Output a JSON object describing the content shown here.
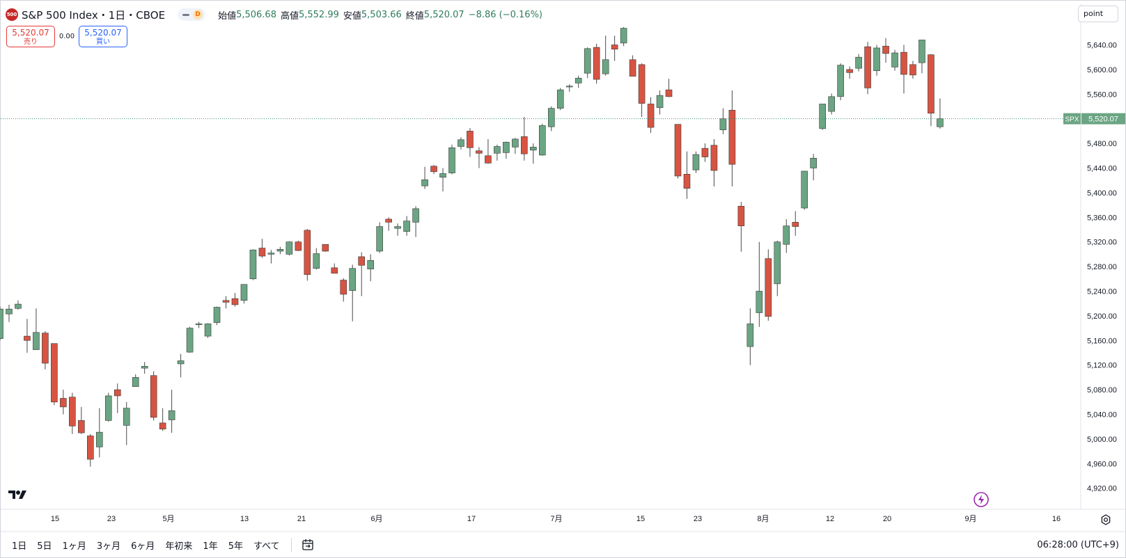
{
  "header": {
    "symbol_badge": "500",
    "title": "S&P 500 Index・1日・CBOE",
    "interval_badge": "D",
    "ohlc": [
      {
        "label": "始値",
        "value": "5,506.68"
      },
      {
        "label": "高値",
        "value": "5,552.99"
      },
      {
        "label": "安値",
        "value": "5,503.66"
      },
      {
        "label": "終値",
        "value": "5,520.07"
      }
    ],
    "change": "−8.86 (−0.16%)"
  },
  "trade": {
    "sell_price": "5,520.07",
    "sell_label": "売り",
    "spread": "0.00",
    "buy_price": "5,520.07",
    "buy_label": "買い"
  },
  "scale_mode": "point",
  "price_tag": {
    "symbol": "SPX",
    "value": "5,520.07"
  },
  "timeframes": [
    "1日",
    "5日",
    "1ヶ月",
    "3ヶ月",
    "6ヶ月",
    "年初来",
    "1年",
    "5年",
    "すべて"
  ],
  "clock": "06:28:00 (UTC+9)",
  "colors": {
    "up": "#6ba583",
    "down": "#d75442",
    "wick": "#4a4a4a",
    "accent": "#2e7d5b",
    "last_line": "#3d8f78"
  },
  "chart_data": {
    "type": "candlestick",
    "y_axis": {
      "labels": [
        "5,640.00",
        "5,600.00",
        "5,560.00",
        "5,520.00",
        "5,480.00",
        "5,440.00",
        "5,400.00",
        "5,360.00",
        "5,320.00",
        "5,280.00",
        "5,240.00",
        "5,200.00",
        "5,160.00",
        "5,120.00",
        "5,080.00",
        "5,040.00",
        "5,000.00",
        "4,960.00",
        "4,920.00"
      ],
      "min": 4910,
      "max": 5690
    },
    "x_axis": {
      "labels": [
        "15",
        "23",
        "5月",
        "13",
        "21",
        "6月",
        "17",
        "7月",
        "15",
        "23",
        "8月",
        "12",
        "20",
        "9月",
        "16"
      ]
    },
    "last_price": 5520.07,
    "candles": [
      {
        "o": 5163,
        "h": 5215,
        "l": 5160,
        "c": 5211
      },
      {
        "o": 5203,
        "h": 5218,
        "l": 5190,
        "c": 5211
      },
      {
        "o": 5212,
        "h": 5225,
        "l": 5210,
        "c": 5219
      },
      {
        "o": 5167,
        "h": 5195,
        "l": 5140,
        "c": 5160
      },
      {
        "o": 5145,
        "h": 5212,
        "l": 5145,
        "c": 5173
      },
      {
        "o": 5172,
        "h": 5175,
        "l": 5113,
        "c": 5123
      },
      {
        "o": 5155,
        "h": 5155,
        "l": 5055,
        "c": 5060
      },
      {
        "o": 5066,
        "h": 5080,
        "l": 5040,
        "c": 5052
      },
      {
        "o": 5068,
        "h": 5075,
        "l": 5008,
        "c": 5021
      },
      {
        "o": 5030,
        "h": 5052,
        "l": 5008,
        "c": 5010
      },
      {
        "o": 5005,
        "h": 5008,
        "l": 4955,
        "c": 4967
      },
      {
        "o": 4987,
        "h": 5050,
        "l": 4970,
        "c": 5011
      },
      {
        "o": 5030,
        "h": 5075,
        "l": 5028,
        "c": 5070
      },
      {
        "o": 5080,
        "h": 5090,
        "l": 5042,
        "c": 5070
      },
      {
        "o": 5022,
        "h": 5060,
        "l": 4990,
        "c": 5050
      },
      {
        "o": 5085,
        "h": 5105,
        "l": 5085,
        "c": 5100
      },
      {
        "o": 5115,
        "h": 5125,
        "l": 5106,
        "c": 5118
      },
      {
        "o": 5103,
        "h": 5110,
        "l": 5030,
        "c": 5035
      },
      {
        "o": 5026,
        "h": 5050,
        "l": 5013,
        "c": 5016
      },
      {
        "o": 5031,
        "h": 5080,
        "l": 5010,
        "c": 5046
      },
      {
        "o": 5122,
        "h": 5138,
        "l": 5100,
        "c": 5127
      },
      {
        "o": 5141,
        "h": 5182,
        "l": 5140,
        "c": 5180
      },
      {
        "o": 5187,
        "h": 5190,
        "l": 5180,
        "c": 5187
      },
      {
        "o": 5167,
        "h": 5188,
        "l": 5164,
        "c": 5187
      },
      {
        "o": 5189,
        "h": 5215,
        "l": 5185,
        "c": 5214
      },
      {
        "o": 5225,
        "h": 5232,
        "l": 5212,
        "c": 5222
      },
      {
        "o": 5228,
        "h": 5237,
        "l": 5215,
        "c": 5218
      },
      {
        "o": 5225,
        "h": 5250,
        "l": 5220,
        "c": 5251
      },
      {
        "o": 5260,
        "h": 5308,
        "l": 5258,
        "c": 5307
      },
      {
        "o": 5310,
        "h": 5325,
        "l": 5294,
        "c": 5297
      },
      {
        "o": 5300,
        "h": 5307,
        "l": 5285,
        "c": 5302
      },
      {
        "o": 5305,
        "h": 5312,
        "l": 5300,
        "c": 5308
      },
      {
        "o": 5300,
        "h": 5321,
        "l": 5298,
        "c": 5320
      },
      {
        "o": 5320,
        "h": 5322,
        "l": 5305,
        "c": 5306
      },
      {
        "o": 5339,
        "h": 5341,
        "l": 5257,
        "c": 5267
      },
      {
        "o": 5277,
        "h": 5310,
        "l": 5275,
        "c": 5301
      },
      {
        "o": 5316,
        "h": 5316,
        "l": 5304,
        "c": 5305
      },
      {
        "o": 5278,
        "h": 5285,
        "l": 5270,
        "c": 5269
      },
      {
        "o": 5258,
        "h": 5261,
        "l": 5223,
        "c": 5235
      },
      {
        "o": 5241,
        "h": 5283,
        "l": 5191,
        "c": 5277
      },
      {
        "o": 5296,
        "h": 5303,
        "l": 5232,
        "c": 5282
      },
      {
        "o": 5276,
        "h": 5300,
        "l": 5256,
        "c": 5290
      },
      {
        "o": 5305,
        "h": 5352,
        "l": 5302,
        "c": 5345
      },
      {
        "o": 5357,
        "h": 5360,
        "l": 5338,
        "c": 5352
      },
      {
        "o": 5342,
        "h": 5350,
        "l": 5330,
        "c": 5345
      },
      {
        "o": 5337,
        "h": 5362,
        "l": 5330,
        "c": 5354
      },
      {
        "o": 5352,
        "h": 5378,
        "l": 5328,
        "c": 5374
      },
      {
        "o": 5411,
        "h": 5442,
        "l": 5406,
        "c": 5421
      },
      {
        "o": 5443,
        "h": 5445,
        "l": 5430,
        "c": 5434
      },
      {
        "o": 5425,
        "h": 5440,
        "l": 5402,
        "c": 5431
      },
      {
        "o": 5432,
        "h": 5478,
        "l": 5430,
        "c": 5473
      },
      {
        "o": 5475,
        "h": 5490,
        "l": 5470,
        "c": 5486
      },
      {
        "o": 5500,
        "h": 5505,
        "l": 5458,
        "c": 5473
      },
      {
        "o": 5468,
        "h": 5474,
        "l": 5440,
        "c": 5464
      },
      {
        "o": 5460,
        "h": 5487,
        "l": 5447,
        "c": 5448
      },
      {
        "o": 5464,
        "h": 5478,
        "l": 5452,
        "c": 5475
      },
      {
        "o": 5465,
        "h": 5483,
        "l": 5455,
        "c": 5482
      },
      {
        "o": 5474,
        "h": 5489,
        "l": 5463,
        "c": 5487
      },
      {
        "o": 5491,
        "h": 5523,
        "l": 5452,
        "c": 5463
      },
      {
        "o": 5469,
        "h": 5480,
        "l": 5447,
        "c": 5474
      },
      {
        "o": 5461,
        "h": 5512,
        "l": 5460,
        "c": 5509
      },
      {
        "o": 5507,
        "h": 5540,
        "l": 5500,
        "c": 5537
      },
      {
        "o": 5537,
        "h": 5570,
        "l": 5534,
        "c": 5567
      },
      {
        "o": 5572,
        "h": 5576,
        "l": 5564,
        "c": 5573
      },
      {
        "o": 5578,
        "h": 5590,
        "l": 5570,
        "c": 5586
      },
      {
        "o": 5594,
        "h": 5636,
        "l": 5586,
        "c": 5634
      },
      {
        "o": 5636,
        "h": 5642,
        "l": 5577,
        "c": 5584
      },
      {
        "o": 5593,
        "h": 5655,
        "l": 5590,
        "c": 5616
      },
      {
        "o": 5640,
        "h": 5655,
        "l": 5614,
        "c": 5633
      },
      {
        "o": 5643,
        "h": 5669,
        "l": 5638,
        "c": 5667
      },
      {
        "o": 5616,
        "h": 5623,
        "l": 5590,
        "c": 5589
      },
      {
        "o": 5608,
        "h": 5610,
        "l": 5523,
        "c": 5545
      },
      {
        "o": 5544,
        "h": 5555,
        "l": 5497,
        "c": 5506
      },
      {
        "o": 5538,
        "h": 5566,
        "l": 5527,
        "c": 5558
      },
      {
        "o": 5567,
        "h": 5585,
        "l": 5555,
        "c": 5556
      },
      {
        "o": 5511,
        "h": 5511,
        "l": 5423,
        "c": 5427
      },
      {
        "o": 5430,
        "h": 5467,
        "l": 5390,
        "c": 5407
      },
      {
        "o": 5437,
        "h": 5467,
        "l": 5432,
        "c": 5462
      },
      {
        "o": 5472,
        "h": 5480,
        "l": 5450,
        "c": 5458
      },
      {
        "o": 5477,
        "h": 5487,
        "l": 5410,
        "c": 5436
      },
      {
        "o": 5502,
        "h": 5537,
        "l": 5495,
        "c": 5520
      },
      {
        "o": 5534,
        "h": 5566,
        "l": 5410,
        "c": 5446
      },
      {
        "o": 5378,
        "h": 5385,
        "l": 5304,
        "c": 5346
      },
      {
        "o": 5150,
        "h": 5212,
        "l": 5120,
        "c": 5187
      },
      {
        "o": 5205,
        "h": 5320,
        "l": 5182,
        "c": 5240
      },
      {
        "o": 5293,
        "h": 5308,
        "l": 5192,
        "c": 5199
      },
      {
        "o": 5252,
        "h": 5322,
        "l": 5232,
        "c": 5320
      },
      {
        "o": 5316,
        "h": 5357,
        "l": 5302,
        "c": 5346
      },
      {
        "o": 5352,
        "h": 5370,
        "l": 5330,
        "c": 5345
      },
      {
        "o": 5375,
        "h": 5435,
        "l": 5372,
        "c": 5435
      },
      {
        "o": 5440,
        "h": 5463,
        "l": 5420,
        "c": 5456
      },
      {
        "o": 5504,
        "h": 5542,
        "l": 5502,
        "c": 5544
      },
      {
        "o": 5532,
        "h": 5561,
        "l": 5527,
        "c": 5556
      },
      {
        "o": 5556,
        "h": 5610,
        "l": 5550,
        "c": 5607
      },
      {
        "o": 5600,
        "h": 5605,
        "l": 5585,
        "c": 5595
      },
      {
        "o": 5602,
        "h": 5625,
        "l": 5597,
        "c": 5620
      },
      {
        "o": 5637,
        "h": 5645,
        "l": 5560,
        "c": 5570
      },
      {
        "o": 5598,
        "h": 5640,
        "l": 5590,
        "c": 5635
      },
      {
        "o": 5638,
        "h": 5651,
        "l": 5611,
        "c": 5626
      },
      {
        "o": 5604,
        "h": 5632,
        "l": 5598,
        "c": 5627
      },
      {
        "o": 5628,
        "h": 5640,
        "l": 5561,
        "c": 5592
      },
      {
        "o": 5608,
        "h": 5614,
        "l": 5585,
        "c": 5591
      },
      {
        "o": 5611,
        "h": 5648,
        "l": 5594,
        "c": 5648
      },
      {
        "o": 5624,
        "h": 5625,
        "l": 5508,
        "c": 5529
      },
      {
        "o": 5507,
        "h": 5553,
        "l": 5504,
        "c": 5520
      }
    ]
  }
}
